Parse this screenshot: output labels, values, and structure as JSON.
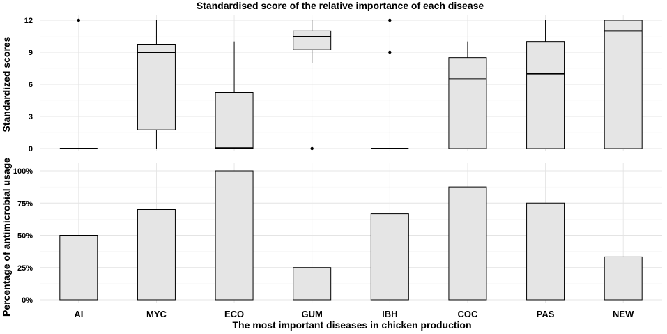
{
  "chart_data": [
    {
      "type": "boxplot",
      "title": "Standardised score of the relative importance of each disease",
      "ylabel": "Standardized scores",
      "xlabel": "",
      "ylim": [
        0,
        12
      ],
      "yticks": [
        0,
        3,
        6,
        9,
        12
      ],
      "ytick_labels": [
        "0",
        "3",
        "6",
        "9",
        "12"
      ],
      "categories": [
        "AI",
        "MYC",
        "ECO",
        "GUM",
        "IBH",
        "COC",
        "PAS",
        "NEW"
      ],
      "boxes": [
        {
          "min": 0,
          "q1": 0,
          "median": 0,
          "q3": 0,
          "max": 0,
          "outliers": [
            12
          ]
        },
        {
          "min": 0,
          "q1": 1.75,
          "median": 9,
          "q3": 9.75,
          "max": 12,
          "outliers": []
        },
        {
          "min": 0,
          "q1": 0,
          "median": 0.05,
          "q3": 5.25,
          "max": 10,
          "outliers": []
        },
        {
          "min": 8,
          "q1": 9.25,
          "median": 10.5,
          "q3": 11,
          "max": 12,
          "outliers": [
            0
          ]
        },
        {
          "min": 0,
          "q1": 0,
          "median": 0,
          "q3": 0,
          "max": 0,
          "outliers": [
            9,
            12
          ]
        },
        {
          "min": 0,
          "q1": 0,
          "median": 6.5,
          "q3": 8.5,
          "max": 10,
          "outliers": []
        },
        {
          "min": 0,
          "q1": 0,
          "median": 7,
          "q3": 10,
          "max": 12,
          "outliers": []
        },
        {
          "min": 0,
          "q1": 0,
          "median": 11,
          "q3": 12,
          "max": 12,
          "outliers": []
        }
      ],
      "grid": true
    },
    {
      "type": "bar",
      "title": "",
      "ylabel": "Percentage of antimicrobial usage",
      "xlabel": "The most important diseases in chicken production",
      "ylim": [
        0,
        1
      ],
      "yticks": [
        0,
        0.25,
        0.5,
        0.75,
        1
      ],
      "ytick_labels": [
        "0%",
        "25%",
        "50%",
        "75%",
        "100%"
      ],
      "categories": [
        "AI",
        "MYC",
        "ECO",
        "GUM",
        "IBH",
        "COC",
        "PAS",
        "NEW"
      ],
      "values": [
        0.5,
        0.7,
        1.0,
        0.25,
        0.667,
        0.875,
        0.75,
        0.333
      ],
      "grid": true
    }
  ]
}
